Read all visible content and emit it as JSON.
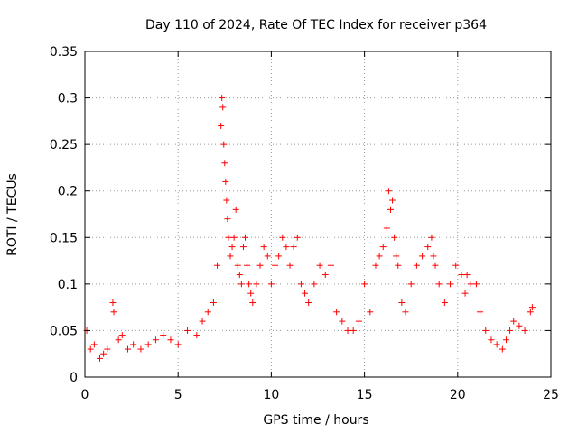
{
  "chart_data": {
    "type": "scatter",
    "title": "Day 110 of 2024, Rate Of TEC Index for receiver p364",
    "xlabel": "GPS time / hours",
    "ylabel": "ROTI / TECUs",
    "xlim": [
      0,
      25
    ],
    "ylim": [
      0,
      0.35
    ],
    "xticks": [
      0,
      5,
      10,
      15,
      20,
      25
    ],
    "xtick_labels": [
      "0",
      "5",
      "10",
      "15",
      "20",
      "25"
    ],
    "yticks": [
      0,
      0.05,
      0.1,
      0.15,
      0.2,
      0.25,
      0.3,
      0.35
    ],
    "ytick_labels": [
      "0",
      "0.05",
      "0.1",
      "0.15",
      "0.2",
      "0.25",
      "0.3",
      "0.35"
    ],
    "grid": true,
    "marker": "+",
    "marker_color": "#ff0000",
    "series": [
      {
        "name": "ROTI p364",
        "x": [
          0.1,
          0.3,
          0.5,
          0.8,
          1.0,
          1.2,
          1.5,
          1.55,
          1.8,
          2.0,
          2.3,
          2.6,
          3.0,
          3.4,
          3.8,
          4.2,
          4.6,
          5.0,
          5.5,
          6.0,
          6.3,
          6.6,
          6.9,
          7.1,
          7.3,
          7.35,
          7.4,
          7.45,
          7.5,
          7.55,
          7.6,
          7.65,
          7.7,
          7.8,
          7.9,
          8.0,
          8.1,
          8.2,
          8.3,
          8.4,
          8.5,
          8.6,
          8.7,
          8.8,
          8.9,
          9.0,
          9.2,
          9.4,
          9.6,
          9.8,
          10.0,
          10.2,
          10.4,
          10.6,
          10.8,
          11.0,
          11.2,
          11.4,
          11.6,
          11.8,
          12.0,
          12.3,
          12.6,
          12.9,
          13.2,
          13.5,
          13.8,
          14.1,
          14.4,
          14.7,
          15.0,
          15.3,
          15.6,
          15.8,
          16.0,
          16.2,
          16.3,
          16.4,
          16.5,
          16.6,
          16.7,
          16.8,
          17.0,
          17.2,
          17.5,
          17.8,
          18.1,
          18.4,
          18.6,
          18.7,
          18.8,
          19.0,
          19.3,
          19.6,
          19.9,
          20.2,
          20.4,
          20.5,
          20.7,
          21.0,
          21.2,
          21.5,
          21.8,
          22.1,
          22.4,
          22.6,
          22.8,
          23.0,
          23.3,
          23.6,
          23.9,
          24.0
        ],
        "y": [
          0.05,
          0.03,
          0.035,
          0.02,
          0.025,
          0.03,
          0.08,
          0.07,
          0.04,
          0.045,
          0.03,
          0.035,
          0.03,
          0.035,
          0.04,
          0.045,
          0.04,
          0.035,
          0.05,
          0.045,
          0.06,
          0.07,
          0.08,
          0.12,
          0.27,
          0.3,
          0.29,
          0.25,
          0.23,
          0.21,
          0.19,
          0.17,
          0.15,
          0.13,
          0.14,
          0.15,
          0.18,
          0.12,
          0.11,
          0.1,
          0.14,
          0.15,
          0.12,
          0.1,
          0.09,
          0.08,
          0.1,
          0.12,
          0.14,
          0.13,
          0.1,
          0.12,
          0.13,
          0.15,
          0.14,
          0.12,
          0.14,
          0.15,
          0.1,
          0.09,
          0.08,
          0.1,
          0.12,
          0.11,
          0.12,
          0.07,
          0.06,
          0.05,
          0.05,
          0.06,
          0.1,
          0.07,
          0.12,
          0.13,
          0.14,
          0.16,
          0.2,
          0.18,
          0.19,
          0.15,
          0.13,
          0.12,
          0.08,
          0.07,
          0.1,
          0.12,
          0.13,
          0.14,
          0.15,
          0.13,
          0.12,
          0.1,
          0.08,
          0.1,
          0.12,
          0.11,
          0.09,
          0.11,
          0.1,
          0.1,
          0.07,
          0.05,
          0.04,
          0.035,
          0.03,
          0.04,
          0.05,
          0.06,
          0.055,
          0.05,
          0.07,
          0.075
        ]
      }
    ]
  }
}
